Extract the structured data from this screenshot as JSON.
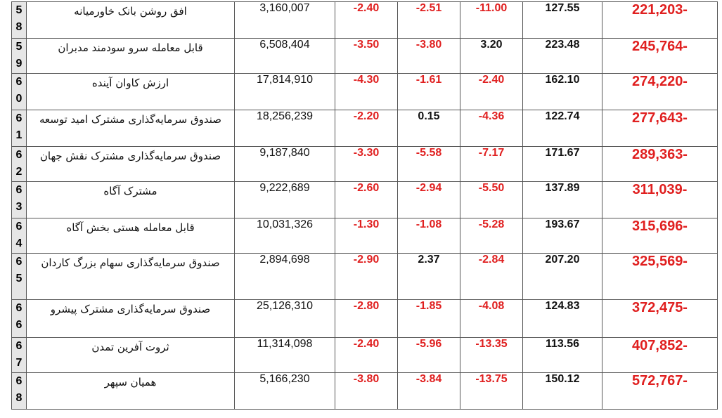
{
  "colors": {
    "negative": "#e02020",
    "text": "#111111",
    "index_bg": "#e6e6e6",
    "border": "#555555"
  },
  "rows": [
    {
      "idx": [
        "5",
        "8"
      ],
      "name": "افق روشن بانک خاورمیانه",
      "volume": "3,160,007",
      "p1": "-2.40",
      "p2": "-2.51",
      "p3": "-11.00",
      "price": "127.55",
      "flow": "221,203-"
    },
    {
      "idx": [
        "5",
        "9"
      ],
      "name": "قابل معامله سرو سودمند مدبران",
      "volume": "6,508,404",
      "p1": "-3.50",
      "p2": "-3.80",
      "p3": "3.20",
      "price": "223.48",
      "flow": "245,764-"
    },
    {
      "idx": [
        "6",
        "0"
      ],
      "name": "ارزش کاوان آینده",
      "volume": "17,814,910",
      "p1": "-4.30",
      "p2": "-1.61",
      "p3": "-2.40",
      "price": "162.10",
      "flow": "274,220-"
    },
    {
      "idx": [
        "6",
        "1"
      ],
      "name": "صندوق سرمایه‌گذاری مشترک امید توسعه",
      "volume": "18,256,239",
      "p1": "-2.20",
      "p2": "0.15",
      "p3": "-4.36",
      "price": "122.74",
      "flow": "277,643-"
    },
    {
      "idx": [
        "6",
        "2"
      ],
      "name": "صندوق سرمایه‌گذاری مشترک نقش جهان",
      "volume": "9,187,840",
      "p1": "-3.30",
      "p2": "-5.58",
      "p3": "-7.17",
      "price": "171.67",
      "flow": "289,363-"
    },
    {
      "idx": [
        "6",
        "3"
      ],
      "name": "مشترک آگاه",
      "volume": "9,222,689",
      "p1": "-2.60",
      "p2": "-2.94",
      "p3": "-5.50",
      "price": "137.89",
      "flow": "311,039-"
    },
    {
      "idx": [
        "6",
        "4"
      ],
      "name": "قابل معامله هستی بخش آگاه",
      "volume": "10,031,326",
      "p1": "-1.30",
      "p2": "-1.08",
      "p3": "-5.28",
      "price": "193.67",
      "flow": "315,696-"
    },
    {
      "idx": [
        "6",
        "5"
      ],
      "name": "صندوق سرمایه‌گذاری سهام بزرگ کاردان",
      "volume": "2,894,698",
      "p1": "-2.90",
      "p2": "2.37",
      "p3": "-2.84",
      "price": "207.20",
      "flow": "325,569-"
    },
    {
      "idx": [
        "6",
        "6"
      ],
      "name": "صندوق سرمایه‌گذاری مشترک پیشرو",
      "volume": "25,126,310",
      "p1": "-2.80",
      "p2": "-1.85",
      "p3": "-4.08",
      "price": "124.83",
      "flow": "372,475-"
    },
    {
      "idx": [
        "6",
        "7"
      ],
      "name": "ثروت آفرین تمدن",
      "volume": "11,314,098",
      "p1": "-2.40",
      "p2": "-5.96",
      "p3": "-13.35",
      "price": "113.56",
      "flow": "407,852-"
    },
    {
      "idx": [
        "6",
        "8"
      ],
      "name": "همیان سپهر",
      "volume": "5,166,230",
      "p1": "-3.80",
      "p2": "-3.84",
      "p3": "-13.75",
      "price": "150.12",
      "flow": "572,767-"
    }
  ]
}
